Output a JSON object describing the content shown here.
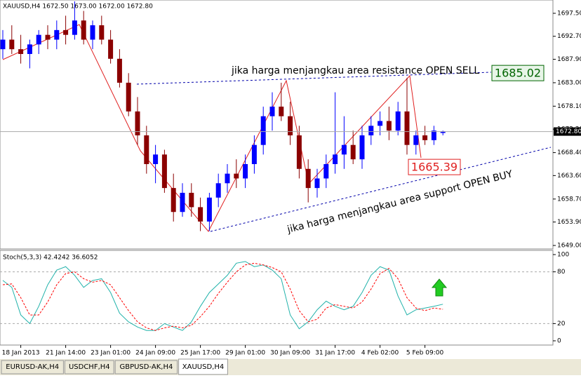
{
  "chart_data": [
    {
      "type": "candlestick",
      "title": "XAUUSD,H4  1672.50 1673.00 1672.00 1672.80",
      "categories": [
        null,
        null,
        "18 Jan 2013",
        null,
        null,
        null,
        null,
        "21 Jan 14:00",
        null,
        null,
        null,
        null,
        "23 Jan 01:00",
        null,
        null,
        null,
        null,
        "24 Jan 09:00",
        null,
        null,
        null,
        null,
        "25 Jan 17:00",
        null,
        null,
        null,
        null,
        "29 Jan 01:00",
        null,
        null,
        null,
        null,
        "30 Jan 09:00",
        null,
        null,
        null,
        null,
        "31 Jan 17:00",
        null,
        null,
        null,
        null,
        "4 Feb 02:00",
        null,
        null,
        null,
        null,
        "5 Feb 09:00",
        null,
        null
      ],
      "open": [
        1690,
        1692,
        1690,
        1689,
        1691,
        1693,
        1692,
        1694,
        1693,
        1696,
        1692,
        1695,
        1692,
        1688,
        1683,
        1677,
        1672,
        1666,
        1668,
        1661,
        1656,
        1660,
        1657,
        1654,
        1659,
        1662,
        1664,
        1663,
        1666,
        1670,
        1676,
        1678,
        1676,
        1672,
        1665,
        1661,
        1663,
        1666,
        1668,
        1670,
        1667,
        1672,
        1674,
        1675,
        1673,
        1677,
        1670,
        1672,
        1671,
        1672.5
      ],
      "high": [
        1694,
        1695,
        1693,
        1692,
        1694,
        1695,
        1696,
        1697,
        1700,
        1698,
        1696,
        1697,
        1694,
        1690,
        1685,
        1680,
        1674,
        1670,
        1669,
        1664,
        1662,
        1662,
        1659,
        1660,
        1664,
        1666,
        1667,
        1668,
        1672,
        1678,
        1681,
        1683,
        1679,
        1674,
        1667,
        1665,
        1668,
        1681,
        1676,
        1673,
        1674,
        1676,
        1677,
        1678,
        1679,
        1684,
        1673,
        1674,
        1674,
        1673
      ],
      "low": [
        1688,
        1689,
        1687,
        1686,
        1689,
        1690,
        1690,
        1691,
        1692,
        1691,
        1690,
        1691,
        1687,
        1682,
        1676,
        1670,
        1664,
        1662,
        1660,
        1654,
        1655,
        1655,
        1652,
        1652,
        1657,
        1660,
        1661,
        1661,
        1664,
        1668,
        1673,
        1675,
        1670,
        1663,
        1658,
        1659,
        1661,
        1664,
        1665,
        1666,
        1665,
        1670,
        1672,
        1671,
        1672,
        1668,
        1668,
        1670,
        1670,
        1672
      ],
      "close": [
        1692,
        1690,
        1689,
        1691,
        1693,
        1692,
        1694,
        1693,
        1696,
        1692,
        1695,
        1692,
        1688,
        1683,
        1677,
        1672,
        1666,
        1668,
        1661,
        1656,
        1660,
        1657,
        1654,
        1659,
        1662,
        1664,
        1663,
        1666,
        1670,
        1676,
        1678,
        1676,
        1672,
        1665,
        1661,
        1663,
        1666,
        1668,
        1670,
        1667,
        1672,
        1674,
        1675,
        1673,
        1677,
        1670,
        1672,
        1671,
        1673,
        1672.8
      ],
      "up_color": "#0000ff",
      "down_color": "#8b0000",
      "ylim": [
        1648.27,
        1700.28
      ],
      "yticks": [
        {
          "value": 1697.5,
          "label": "1697.50"
        },
        {
          "value": 1692.7,
          "label": "1692.70"
        },
        {
          "value": 1687.9,
          "label": "1687.90"
        },
        {
          "value": 1683,
          "label": "1683.00"
        },
        {
          "value": 1678.1,
          "label": "1678.10"
        },
        {
          "value": 1673.3,
          "label": "1673.30"
        },
        {
          "value": 1668.4,
          "label": "1668.40"
        },
        {
          "value": 1663.6,
          "label": "1663.60"
        },
        {
          "value": 1658.7,
          "label": "1658.70"
        },
        {
          "value": 1653.9,
          "label": "1653.90"
        },
        {
          "value": 1649,
          "label": "1649.00"
        }
      ],
      "current_price": {
        "value": 1672.8,
        "label": "1672.80"
      },
      "resistance": 1685.02,
      "support": 1665.39,
      "annotations": [
        "jika harga menjangkau area resistance OPEN SELL",
        "jika harga menjangkau area support OPEN BUY"
      ]
    },
    {
      "type": "line",
      "title": "Stoch(5,3,3) 42.4242 36.6052",
      "series": [
        {
          "name": "main",
          "color": "#20b2aa",
          "values": [
            70,
            62,
            30,
            20,
            40,
            65,
            82,
            86,
            76,
            62,
            70,
            72,
            56,
            32,
            22,
            16,
            12,
            12,
            20,
            16,
            12,
            22,
            40,
            56,
            66,
            76,
            90,
            92,
            86,
            88,
            82,
            72,
            30,
            14,
            22,
            36,
            46,
            40,
            36,
            40,
            56,
            76,
            86,
            82,
            52,
            30,
            36,
            38,
            40,
            42.42
          ]
        },
        {
          "name": "signal",
          "color": "#ff0000",
          "values": [
            65,
            66,
            50,
            30,
            30,
            45,
            65,
            78,
            80,
            72,
            68,
            70,
            65,
            50,
            35,
            22,
            15,
            12,
            15,
            17,
            15,
            18,
            28,
            40,
            55,
            68,
            80,
            88,
            90,
            88,
            85,
            80,
            60,
            35,
            22,
            25,
            38,
            42,
            40,
            38,
            45,
            60,
            78,
            84,
            72,
            50,
            38,
            35,
            38,
            36.61
          ]
        }
      ],
      "ylim": [
        -4.9,
        104.9
      ],
      "yticks": [
        100,
        80,
        20,
        0
      ],
      "levels": [
        80,
        20
      ]
    },
    {
      "tabs": [
        "EURUSD-AK,H4",
        "USDCHF,H4",
        "GBPUSD-AK,H4",
        "XAUUSD,H4"
      ],
      "active_tab": 3
    }
  ]
}
